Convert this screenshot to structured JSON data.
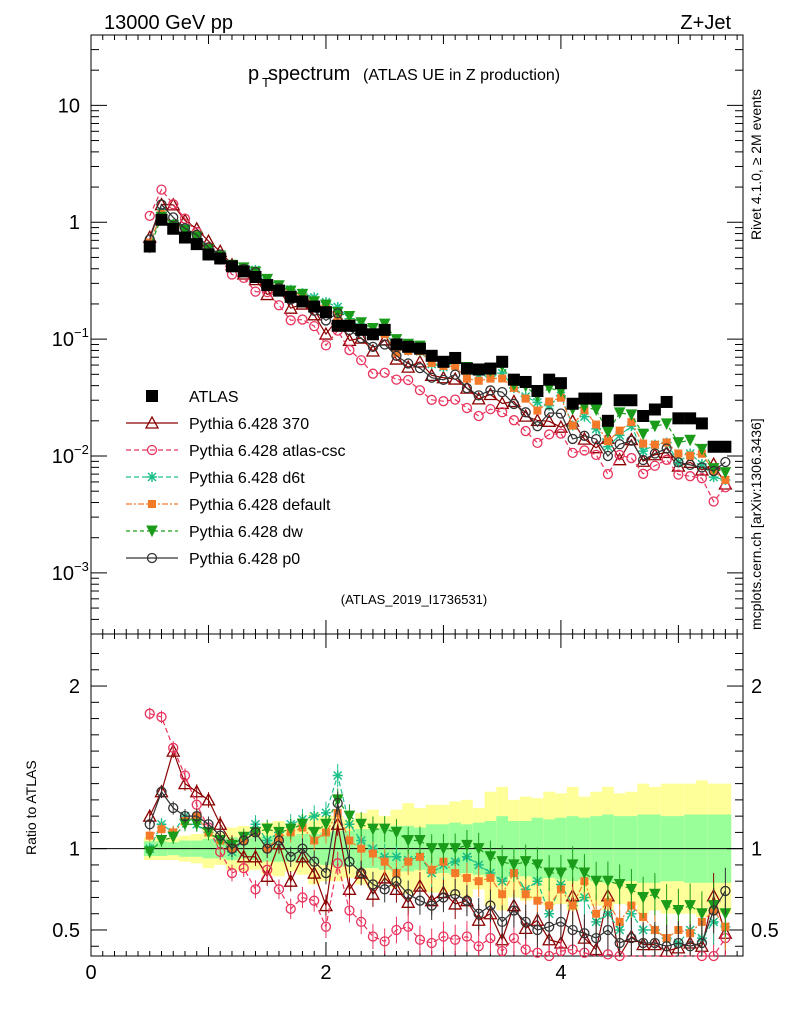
{
  "header": {
    "left": "13000 GeV pp",
    "right": "Z+Jet"
  },
  "side_labels": {
    "top": "Rivet 4.1.0, ≥ 2M events",
    "bottom": "mcplots.cern.ch [arXiv:1306.3436]"
  },
  "chart_data": {
    "type": "line",
    "title_main": "p",
    "title_sub": "T",
    "title_rest": " spectrum",
    "title_paren": "(ATLAS UE in Z production)",
    "analysis_id": "(ATLAS_2019_I1736531)",
    "x_range": [
      0,
      5.55
    ],
    "x_ticks": [
      "0",
      "2",
      "4"
    ],
    "y_main_ticks": [
      "10",
      "1",
      "10",
      "10",
      "10"
    ],
    "y_main_exps": [
      "",
      "",
      "−1",
      "−2",
      "−3"
    ],
    "y_main_log_range": [
      0.0003,
      40
    ],
    "y_ratio_range": [
      0.34,
      2.32
    ],
    "y_ratio_ticks": [
      "0.5",
      "1",
      "2"
    ],
    "ratio_ylabel": "Ratio to ATLAS",
    "x": [
      0.5,
      0.6,
      0.7,
      0.8,
      0.9,
      1.0,
      1.1,
      1.2,
      1.3,
      1.4,
      1.5,
      1.6,
      1.7,
      1.8,
      1.9,
      2.0,
      2.1,
      2.2,
      2.3,
      2.4,
      2.5,
      2.6,
      2.7,
      2.8,
      2.9,
      3.0,
      3.1,
      3.2,
      3.3,
      3.4,
      3.5,
      3.6,
      3.7,
      3.8,
      3.9,
      4.0,
      4.1,
      4.2,
      4.3,
      4.4,
      4.5,
      4.6,
      4.7,
      4.8,
      4.9,
      5.0,
      5.1,
      5.2,
      5.3,
      5.4
    ],
    "data": [
      0.62,
      1.05,
      0.88,
      0.74,
      0.65,
      0.53,
      0.49,
      0.42,
      0.38,
      0.34,
      0.29,
      0.26,
      0.23,
      0.21,
      0.19,
      0.17,
      0.13,
      0.13,
      0.12,
      0.11,
      0.12,
      0.09,
      0.086,
      0.083,
      0.072,
      0.064,
      0.069,
      0.056,
      0.055,
      0.056,
      0.064,
      0.045,
      0.043,
      0.036,
      0.045,
      0.042,
      0.028,
      0.031,
      0.031,
      0.02,
      0.03,
      0.03,
      0.022,
      0.025,
      0.029,
      0.021,
      0.021,
      0.019,
      0.012,
      0.012
    ],
    "data_label": "ATLAS",
    "band_green": [
      0.045,
      0.045,
      0.04,
      0.05,
      0.05,
      0.06,
      0.06,
      0.07,
      0.06,
      0.07,
      0.08,
      0.08,
      0.08,
      0.09,
      0.09,
      0.1,
      0.11,
      0.11,
      0.12,
      0.12,
      0.13,
      0.14,
      0.14,
      0.13,
      0.15,
      0.15,
      0.16,
      0.15,
      0.16,
      0.17,
      0.2,
      0.17,
      0.17,
      0.19,
      0.18,
      0.19,
      0.2,
      0.19,
      0.2,
      0.21,
      0.2,
      0.2,
      0.21,
      0.21,
      0.2,
      0.2,
      0.21,
      0.21,
      0.21,
      0.21
    ],
    "band_yellow": [
      0.07,
      0.07,
      0.07,
      0.08,
      0.09,
      0.12,
      0.1,
      0.13,
      0.14,
      0.13,
      0.16,
      0.17,
      0.14,
      0.16,
      0.22,
      0.2,
      0.2,
      0.18,
      0.22,
      0.24,
      0.2,
      0.24,
      0.28,
      0.25,
      0.27,
      0.27,
      0.29,
      0.3,
      0.25,
      0.35,
      0.38,
      0.3,
      0.32,
      0.31,
      0.35,
      0.34,
      0.38,
      0.32,
      0.35,
      0.38,
      0.34,
      0.35,
      0.4,
      0.38,
      0.4,
      0.4,
      0.4,
      0.42,
      0.4,
      0.4
    ],
    "series": [
      {
        "name": "Pythia 6.428 370",
        "color": "#8b0000",
        "dash": "",
        "marker": "triangle",
        "ratio": [
          1.2,
          1.35,
          1.6,
          1.4,
          1.35,
          1.3,
          1.15,
          1.03,
          0.95,
          0.95,
          0.83,
          1.03,
          0.8,
          0.95,
          0.85,
          0.65,
          1.15,
          0.75,
          0.85,
          0.72,
          0.82,
          0.75,
          0.67,
          0.77,
          0.68,
          0.73,
          0.66,
          0.68,
          0.56,
          0.6,
          0.44,
          0.65,
          0.51,
          0.56,
          0.44,
          0.42,
          0.71,
          0.45,
          0.38,
          0.71,
          0.31,
          0.46,
          0.41,
          0.41,
          0.37,
          0.39,
          0.42,
          0.4,
          0.71,
          0.48
        ],
        "ratio_dev": [
          0.02,
          0.02,
          -0.2,
          -0.01,
          0.0,
          0.05,
          0.0,
          0.0,
          0.0,
          0.0,
          0.0,
          0.0,
          0.0,
          0.0,
          0.0,
          0.0,
          0.0,
          0.0,
          0.0,
          0.0,
          0.0,
          0.0,
          0.0,
          0.0,
          0.0,
          0.0,
          0.0,
          0.0,
          0.0,
          0.0,
          0.0,
          0.0,
          0.0,
          0.0,
          0.0,
          0.0,
          0.0,
          0.0,
          0.0,
          0.0,
          0.0,
          0.0,
          0.0,
          0.0,
          0.0,
          0.0,
          0.0,
          0.0,
          0.0,
          0.0
        ]
      },
      {
        "name": "Pythia 6.428 atlas-csc",
        "color": "#e8335d",
        "dash": "5,3",
        "marker": "circle-open",
        "ratio": [
          1.83,
          1.81,
          1.62,
          1.45,
          1.27,
          1.13,
          0.98,
          0.85,
          0.88,
          0.75,
          0.87,
          0.75,
          0.63,
          0.7,
          0.68,
          0.52,
          0.91,
          0.62,
          0.55,
          0.46,
          0.43,
          0.5,
          0.52,
          0.44,
          0.42,
          0.46,
          0.44,
          0.46,
          0.4,
          0.45,
          0.37,
          0.45,
          0.38,
          0.36,
          0.34,
          0.37,
          0.38,
          0.36,
          0.33,
          0.35,
          0.34,
          0.32,
          0.32,
          0.33,
          0.32,
          0.33,
          0.32,
          0.34,
          0.34,
          0.45
        ]
      },
      {
        "name": "Pythia 6.428 d6t",
        "color": "#1ec08a",
        "dash": "5,3",
        "marker": "star",
        "ratio": [
          1.0,
          1.15,
          1.1,
          1.2,
          1.15,
          1.1,
          1.05,
          0.98,
          1.05,
          1.15,
          1.05,
          1.1,
          1.15,
          1.18,
          1.2,
          1.22,
          1.45,
          1.15,
          1.05,
          1.0,
          0.95,
          0.95,
          0.93,
          0.95,
          0.85,
          0.9,
          0.92,
          0.95,
          0.9,
          0.85,
          0.8,
          0.85,
          0.75,
          0.8,
          0.6,
          0.78,
          0.65,
          0.7,
          0.55,
          0.6,
          0.5,
          0.6,
          0.5,
          0.5,
          0.45,
          0.42,
          0.5,
          0.45,
          0.55,
          0.52
        ]
      },
      {
        "name": "Pythia 6.428 default",
        "color": "#f47a2a",
        "dash": "6,2,2,2",
        "marker": "square",
        "ratio": [
          1.08,
          1.12,
          1.1,
          1.17,
          1.2,
          1.1,
          1.05,
          1.0,
          1.05,
          1.1,
          1.0,
          1.07,
          1.1,
          1.13,
          1.05,
          1.1,
          1.22,
          1.05,
          1.0,
          0.97,
          0.92,
          0.85,
          0.92,
          0.95,
          0.87,
          0.92,
          0.85,
          0.82,
          0.8,
          0.82,
          0.72,
          0.85,
          0.72,
          0.68,
          0.65,
          0.75,
          0.65,
          0.8,
          0.6,
          0.67,
          0.55,
          0.65,
          0.58,
          0.5,
          0.45,
          0.5,
          0.48,
          0.55,
          0.62,
          0.52
        ]
      },
      {
        "name": "Pythia 6.428 dw",
        "color": "#1a9c1a",
        "dash": "4,3",
        "marker": "triangle-down",
        "ratio": [
          0.98,
          1.05,
          1.07,
          1.15,
          1.15,
          1.1,
          1.05,
          1.02,
          1.07,
          1.1,
          1.12,
          1.1,
          1.12,
          1.15,
          1.1,
          1.15,
          1.3,
          1.2,
          1.15,
          1.12,
          1.12,
          1.1,
          1.05,
          1.05,
          1.0,
          1.0,
          1.0,
          1.02,
          1.0,
          0.95,
          0.92,
          0.9,
          0.92,
          0.9,
          0.85,
          0.85,
          0.9,
          0.85,
          0.8,
          0.8,
          0.78,
          0.75,
          0.7,
          0.72,
          0.65,
          0.62,
          0.65,
          0.6,
          0.65,
          0.6
        ]
      },
      {
        "name": "Pythia 6.428 p0",
        "color": "#333333",
        "dash": "",
        "marker": "circle-open",
        "ratio": [
          1.15,
          1.35,
          1.25,
          1.2,
          1.2,
          1.15,
          1.08,
          1.0,
          1.05,
          1.1,
          1.0,
          1.05,
          0.95,
          1.0,
          0.92,
          0.85,
          1.28,
          0.92,
          0.85,
          0.78,
          0.75,
          0.8,
          0.72,
          0.68,
          0.65,
          0.7,
          0.72,
          0.68,
          0.6,
          0.65,
          0.55,
          0.62,
          0.55,
          0.5,
          0.52,
          0.55,
          0.5,
          0.48,
          0.45,
          0.5,
          0.42,
          0.45,
          0.42,
          0.42,
          0.4,
          0.42,
          0.4,
          0.42,
          0.62,
          0.74
        ]
      }
    ]
  }
}
